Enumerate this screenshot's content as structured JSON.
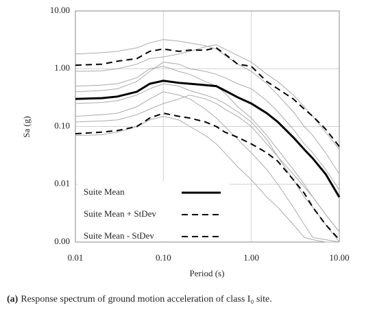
{
  "chart_data": {
    "type": "line",
    "y_label": "Sa (g)",
    "x_label": "Period (s)",
    "caption_label": "(a)",
    "caption": "Response spectrum of ground motion acceleration of class I₀ site.",
    "log_x": true,
    "log_y": true,
    "grid": true,
    "legend": "lower left",
    "xlim": [
      0.01,
      10
    ],
    "ylim": [
      0.001,
      10
    ],
    "xticks": [
      {
        "value": 0.01,
        "label": "0.01"
      },
      {
        "value": 0.1,
        "label": "0.10"
      },
      {
        "value": 1,
        "label": "1.00"
      },
      {
        "value": 10,
        "label": "10.00"
      }
    ],
    "yticks": [
      {
        "value": 0.001,
        "label": "0.00"
      },
      {
        "value": 0.01,
        "label": "0.01"
      },
      {
        "value": 0.1,
        "label": "0.10"
      },
      {
        "value": 1,
        "label": "1.00"
      },
      {
        "value": 10,
        "label": "10.00"
      }
    ],
    "x": [
      0.01,
      0.02,
      0.03,
      0.05,
      0.07,
      0.1,
      0.15,
      0.2,
      0.3,
      0.4,
      0.5,
      0.7,
      1,
      1.5,
      2,
      3,
      4,
      5,
      7,
      10
    ],
    "series": [
      {
        "color": "#aaaaaa",
        "width": 1,
        "values": [
          1.8,
          1.9,
          2.0,
          2.3,
          2.8,
          3.2,
          3.0,
          2.8,
          2.5,
          2.2,
          1.7,
          1.2,
          0.9,
          0.55,
          0.35,
          0.18,
          0.1,
          0.07,
          0.035,
          0.015
        ]
      },
      {
        "color": "#aaaaaa",
        "width": 1,
        "values": [
          0.5,
          0.52,
          0.55,
          0.7,
          1.0,
          1.1,
          0.9,
          0.8,
          0.6,
          0.5,
          0.38,
          0.22,
          0.14,
          0.07,
          0.04,
          0.018,
          0.01,
          0.006,
          0.003,
          0.0015
        ]
      },
      {
        "color": "#aaaaaa",
        "width": 1,
        "values": [
          0.15,
          0.16,
          0.17,
          0.22,
          0.3,
          0.4,
          0.35,
          0.3,
          0.2,
          0.14,
          0.1,
          0.06,
          0.035,
          0.018,
          0.01,
          0.004,
          0.002,
          0.0012,
          0.0011,
          0.001
        ]
      },
      {
        "color": "#aaaaaa",
        "width": 1,
        "values": [
          0.9,
          0.92,
          1.0,
          1.2,
          1.5,
          1.6,
          1.8,
          2.0,
          2.4,
          2.6,
          2.2,
          1.7,
          1.3,
          0.8,
          0.6,
          0.35,
          0.22,
          0.15,
          0.08,
          0.04
        ]
      },
      {
        "color": "#aaaaaa",
        "width": 1,
        "values": [
          0.25,
          0.26,
          0.28,
          0.35,
          0.45,
          0.55,
          0.5,
          0.42,
          0.35,
          0.3,
          0.25,
          0.18,
          0.12,
          0.06,
          0.03,
          0.012,
          0.006,
          0.004,
          0.002,
          0.001
        ]
      },
      {
        "color": "#aaaaaa",
        "width": 1,
        "values": [
          0.07,
          0.072,
          0.08,
          0.1,
          0.13,
          0.15,
          0.13,
          0.1,
          0.07,
          0.05,
          0.035,
          0.02,
          0.012,
          0.006,
          0.004,
          0.002,
          0.0012,
          0.0011,
          0.001,
          0.001
        ]
      },
      {
        "color": "#aaaaaa",
        "width": 1,
        "values": [
          0.4,
          0.42,
          0.45,
          0.6,
          0.9,
          1.3,
          1.2,
          1.0,
          0.9,
          0.8,
          0.7,
          0.55,
          0.45,
          0.28,
          0.18,
          0.09,
          0.05,
          0.035,
          0.018,
          0.008
        ]
      },
      {
        "color": "#aaaaaa",
        "width": 1,
        "values": [
          0.12,
          0.125,
          0.13,
          0.16,
          0.2,
          0.25,
          0.3,
          0.35,
          0.3,
          0.25,
          0.2,
          0.15,
          0.1,
          0.05,
          0.03,
          0.015,
          0.009,
          0.006,
          0.003,
          0.0015
        ]
      },
      {
        "name": "Suite Mean",
        "color": "#000000",
        "width": 3,
        "dash": false,
        "values": [
          0.3,
          0.31,
          0.33,
          0.4,
          0.55,
          0.62,
          0.57,
          0.55,
          0.52,
          0.5,
          0.42,
          0.32,
          0.25,
          0.17,
          0.12,
          0.065,
          0.04,
          0.028,
          0.015,
          0.006
        ]
      },
      {
        "name": "Suite Mean + StDev",
        "color": "#000000",
        "width": 2,
        "dash": true,
        "values": [
          1.15,
          1.2,
          1.35,
          1.5,
          2.0,
          2.2,
          2.0,
          2.1,
          2.1,
          2.3,
          1.8,
          1.2,
          1.1,
          0.6,
          0.45,
          0.3,
          0.2,
          0.15,
          0.09,
          0.045
        ]
      },
      {
        "name": "Suite Mean - StDev",
        "color": "#000000",
        "width": 2,
        "dash": true,
        "values": [
          0.075,
          0.08,
          0.085,
          0.1,
          0.14,
          0.17,
          0.15,
          0.14,
          0.12,
          0.1,
          0.08,
          0.065,
          0.05,
          0.035,
          0.025,
          0.012,
          0.007,
          0.004,
          0.002,
          0.0011
        ]
      }
    ]
  }
}
